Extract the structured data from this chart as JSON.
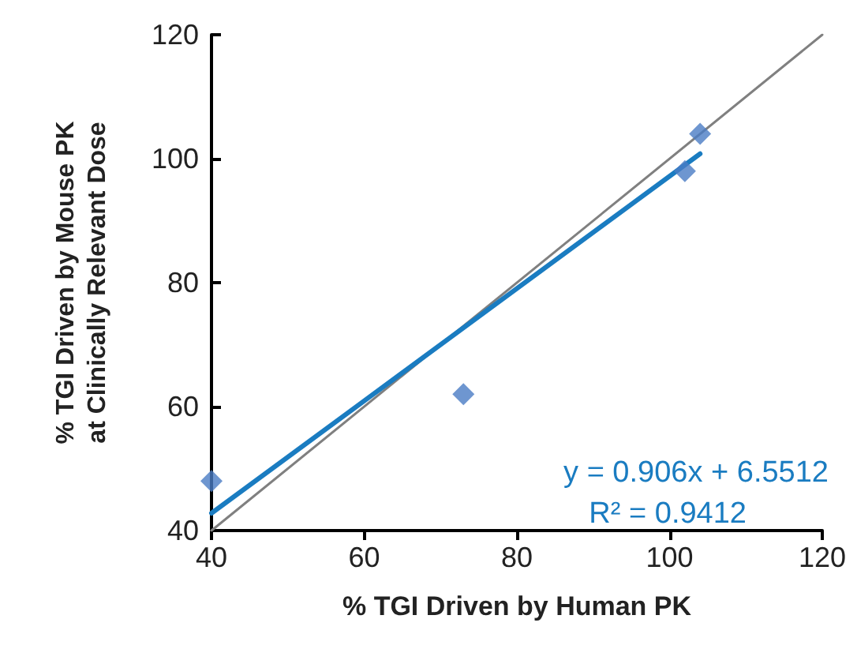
{
  "chart_data": {
    "type": "scatter",
    "xlabel": "% TGI Driven by Human PK",
    "ylabel": "% TGI Driven by Mouse PK\nat Clinically Relevant Dose",
    "xlim": [
      40,
      120
    ],
    "xticks": [
      40,
      60,
      80,
      100,
      120
    ],
    "ylim": [
      40,
      120
    ],
    "yticks": [
      40,
      60,
      80,
      100,
      120
    ],
    "grid": false,
    "annotations": [
      "y = 0.906x + 6.5512",
      "R² = 0.9412"
    ],
    "series": [
      {
        "type": "line",
        "color": "#808080",
        "x": [
          40,
          120
        ],
        "values": [
          40,
          120
        ],
        "marker": "none"
      },
      {
        "type": "line",
        "color": "#1a7cc1",
        "x": [
          40,
          104
        ],
        "values": [
          42.8,
          100.8
        ],
        "marker": "none"
      },
      {
        "color": "#4a7cc4",
        "x": [
          40,
          73,
          102,
          104
        ],
        "values": [
          48,
          62,
          98,
          104
        ],
        "marker": "diamond"
      }
    ]
  }
}
